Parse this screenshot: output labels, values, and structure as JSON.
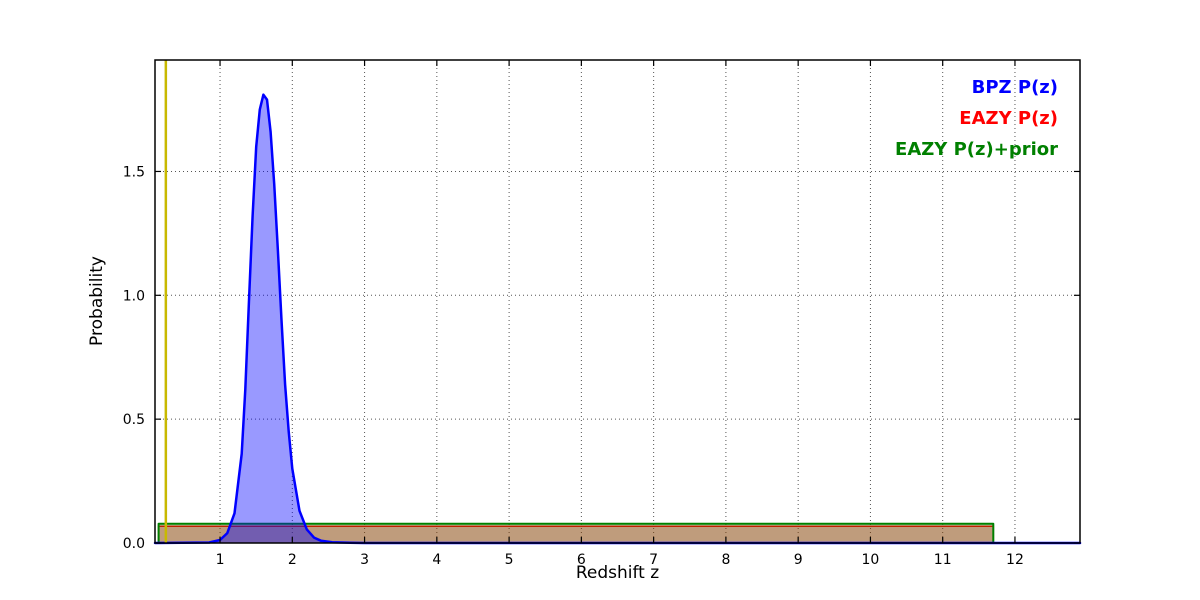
{
  "chart_data": {
    "type": "area",
    "title": "",
    "xlabel": "Redshift z",
    "ylabel": "Probability",
    "xlim": [
      0.1,
      12.9
    ],
    "ylim": [
      0,
      1.95
    ],
    "grid": true,
    "xticks": [
      1,
      2,
      3,
      4,
      5,
      6,
      7,
      8,
      9,
      10,
      11,
      12
    ],
    "xticklabels": [
      "1",
      "2",
      "3",
      "4",
      "5",
      "6",
      "7",
      "8",
      "9",
      "10",
      "11",
      "12"
    ],
    "yticks": [
      0.0,
      0.5,
      1.0,
      1.5
    ],
    "yticklabels": [
      "0.0",
      "0.5",
      "1.0",
      "1.5"
    ],
    "legend": {
      "position": "top-right",
      "entries": [
        {
          "label": "BPZ P(z)",
          "color": "#0000ff"
        },
        {
          "label": "EAZY P(z)",
          "color": "#ff0000"
        },
        {
          "label": "EAZY P(z)+prior",
          "color": "#008000"
        }
      ]
    },
    "series": [
      {
        "name": "EAZY P(z)",
        "color": "#ff0000",
        "fill_opacity": 0.35,
        "line_width": 1.5,
        "points": [
          [
            0.15,
            0
          ],
          [
            0.15,
            0.068
          ],
          [
            11.7,
            0.068
          ],
          [
            11.7,
            0
          ]
        ]
      },
      {
        "name": "EAZY P(z)+prior",
        "color": "#008000",
        "fill_opacity": 0.25,
        "line_width": 2,
        "points": [
          [
            0.15,
            0
          ],
          [
            0.15,
            0.078
          ],
          [
            11.7,
            0.078
          ],
          [
            11.7,
            0
          ]
        ]
      },
      {
        "name": "BPZ P(z)",
        "color": "#0000ff",
        "fill_opacity": 0.4,
        "line_width": 2.5,
        "points": [
          [
            0.1,
            0
          ],
          [
            0.85,
            0.002
          ],
          [
            1.0,
            0.012
          ],
          [
            1.1,
            0.04
          ],
          [
            1.2,
            0.12
          ],
          [
            1.3,
            0.36
          ],
          [
            1.35,
            0.62
          ],
          [
            1.4,
            0.97
          ],
          [
            1.45,
            1.32
          ],
          [
            1.5,
            1.6
          ],
          [
            1.55,
            1.75
          ],
          [
            1.6,
            1.81
          ],
          [
            1.65,
            1.79
          ],
          [
            1.7,
            1.66
          ],
          [
            1.75,
            1.45
          ],
          [
            1.8,
            1.18
          ],
          [
            1.85,
            0.9
          ],
          [
            1.9,
            0.64
          ],
          [
            1.95,
            0.45
          ],
          [
            2.0,
            0.3
          ],
          [
            2.1,
            0.13
          ],
          [
            2.2,
            0.055
          ],
          [
            2.3,
            0.022
          ],
          [
            2.4,
            0.009
          ],
          [
            2.55,
            0.003
          ],
          [
            2.8,
            0.001
          ],
          [
            3.0,
            0
          ],
          [
            12.9,
            0
          ]
        ]
      }
    ],
    "vlines": [
      {
        "x": 0.25,
        "color": "#c8b900",
        "width": 2.5
      }
    ]
  }
}
